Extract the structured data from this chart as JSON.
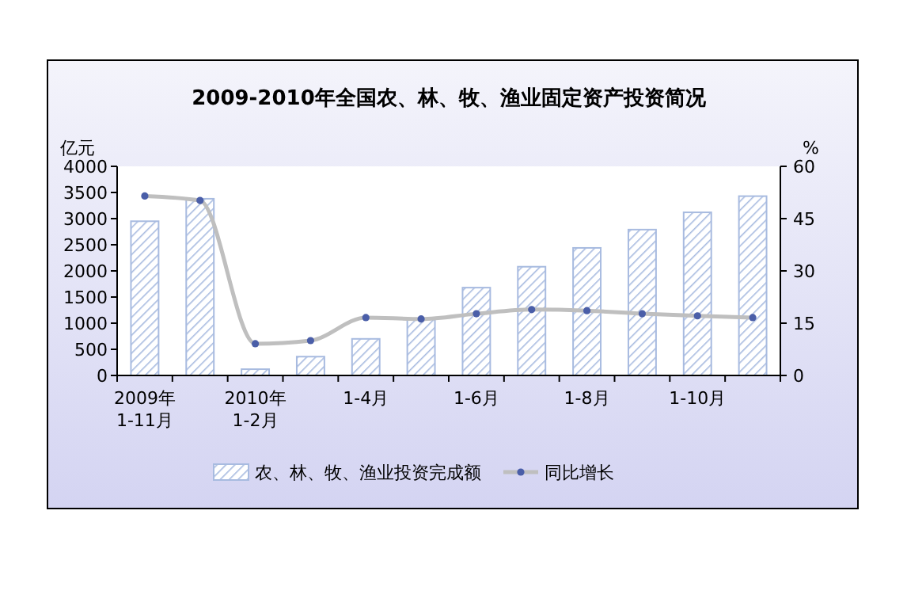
{
  "chart_data": {
    "type": "bar",
    "title": "2009-2010年全国农、林、牧、渔业固定资产投资简况",
    "ylabel": "亿元",
    "y2label": "%",
    "categories": [
      "2009年\n1-11月",
      null,
      "2010年\n1-2月",
      null,
      "1-4月",
      null,
      "1-6月",
      null,
      "1-8月",
      null,
      "1-10月",
      null
    ],
    "series": [
      {
        "name": "农、林、牧、渔业投资完成额",
        "color": "#a8bbe0",
        "values": [
          2950,
          3380,
          120,
          360,
          700,
          1080,
          1680,
          2080,
          2440,
          2790,
          3120,
          3430
        ]
      },
      {
        "name": "同比增长",
        "type": "line",
        "axis": "y2",
        "color": "#bfbfbf",
        "marker": "circle",
        "values": [
          51.5,
          50.2,
          9.1,
          10.0,
          16.6,
          16.2,
          17.7,
          18.9,
          18.6,
          17.7,
          17.1,
          16.6
        ]
      }
    ],
    "ylim": [
      0,
      4000
    ],
    "yticks": [
      0,
      500,
      1000,
      1500,
      2000,
      2500,
      3000,
      3500,
      4000
    ],
    "y2lim": [
      0,
      60
    ],
    "y2ticks": [
      0,
      15,
      30,
      45,
      60
    ],
    "grid": false,
    "legend": "bottom"
  }
}
